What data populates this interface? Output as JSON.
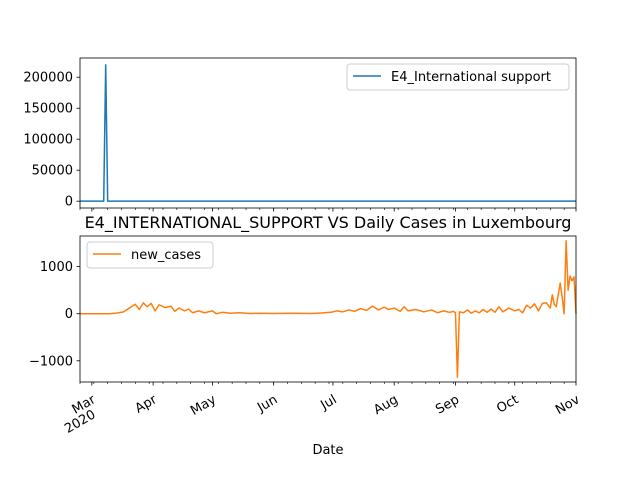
{
  "figure": {
    "title": "E4_INTERNATIONAL_SUPPORT VS Daily Cases in Luxembourg",
    "xlabel": "Date"
  },
  "colors": {
    "series_top": "#1f77b4",
    "series_bottom": "#ff7f0e"
  },
  "chart_data": [
    {
      "type": "line",
      "title": "",
      "x_range": [
        "2020-02-24",
        "2020-11-01"
      ],
      "ylim": [
        -11000,
        231000
      ],
      "y_ticks": [
        0,
        50000,
        100000,
        150000,
        200000
      ],
      "y_tick_labels": [
        "0",
        "50000",
        "100000",
        "150000",
        "200000"
      ],
      "legend_position": "top-right",
      "grid": false,
      "series": [
        {
          "name": "E4_International support",
          "points": [
            [
              "2020-02-24",
              0
            ],
            [
              "2020-03-07",
              0
            ],
            [
              "2020-03-08",
              220000
            ],
            [
              "2020-03-09",
              0
            ],
            [
              "2020-11-01",
              0
            ]
          ]
        }
      ]
    },
    {
      "type": "line",
      "x_range": [
        "2020-02-24",
        "2020-11-01"
      ],
      "ylim": [
        -1450,
        1650
      ],
      "y_ticks": [
        -1000,
        0,
        1000
      ],
      "y_tick_labels": [
        "−1000",
        "0",
        "1000"
      ],
      "x_ticks": [
        {
          "date": "2020-03-01",
          "label": "Mar",
          "sublabel": "2020"
        },
        {
          "date": "2020-04-01",
          "label": "Apr"
        },
        {
          "date": "2020-05-01",
          "label": "May"
        },
        {
          "date": "2020-06-01",
          "label": "Jun"
        },
        {
          "date": "2020-07-01",
          "label": "Jul"
        },
        {
          "date": "2020-08-01",
          "label": "Aug"
        },
        {
          "date": "2020-09-01",
          "label": "Sep"
        },
        {
          "date": "2020-10-01",
          "label": "Oct"
        },
        {
          "date": "2020-11-01",
          "label": "Nov"
        }
      ],
      "legend_position": "top-left",
      "grid": false,
      "series": [
        {
          "name": "new_cases",
          "points": [
            [
              "2020-02-24",
              0
            ],
            [
              "2020-03-10",
              0
            ],
            [
              "2020-03-14",
              15
            ],
            [
              "2020-03-17",
              40
            ],
            [
              "2020-03-20",
              120
            ],
            [
              "2020-03-23",
              200
            ],
            [
              "2020-03-25",
              90
            ],
            [
              "2020-03-27",
              230
            ],
            [
              "2020-03-29",
              150
            ],
            [
              "2020-03-31",
              220
            ],
            [
              "2020-04-02",
              60
            ],
            [
              "2020-04-04",
              190
            ],
            [
              "2020-04-07",
              130
            ],
            [
              "2020-04-10",
              160
            ],
            [
              "2020-04-12",
              50
            ],
            [
              "2020-04-14",
              120
            ],
            [
              "2020-04-17",
              60
            ],
            [
              "2020-04-19",
              100
            ],
            [
              "2020-04-21",
              20
            ],
            [
              "2020-04-24",
              60
            ],
            [
              "2020-04-27",
              20
            ],
            [
              "2020-05-01",
              60
            ],
            [
              "2020-05-03",
              0
            ],
            [
              "2020-05-06",
              30
            ],
            [
              "2020-05-10",
              10
            ],
            [
              "2020-05-15",
              20
            ],
            [
              "2020-05-20",
              5
            ],
            [
              "2020-05-25",
              10
            ],
            [
              "2020-06-01",
              5
            ],
            [
              "2020-06-10",
              10
            ],
            [
              "2020-06-20",
              5
            ],
            [
              "2020-06-25",
              15
            ],
            [
              "2020-06-30",
              30
            ],
            [
              "2020-07-03",
              60
            ],
            [
              "2020-07-06",
              40
            ],
            [
              "2020-07-09",
              80
            ],
            [
              "2020-07-12",
              50
            ],
            [
              "2020-07-15",
              110
            ],
            [
              "2020-07-18",
              70
            ],
            [
              "2020-07-21",
              160
            ],
            [
              "2020-07-24",
              80
            ],
            [
              "2020-07-27",
              140
            ],
            [
              "2020-07-29",
              90
            ],
            [
              "2020-08-01",
              120
            ],
            [
              "2020-08-04",
              50
            ],
            [
              "2020-08-06",
              150
            ],
            [
              "2020-08-08",
              60
            ],
            [
              "2020-08-12",
              90
            ],
            [
              "2020-08-16",
              40
            ],
            [
              "2020-08-20",
              80
            ],
            [
              "2020-08-23",
              20
            ],
            [
              "2020-08-26",
              60
            ],
            [
              "2020-08-29",
              30
            ],
            [
              "2020-08-31",
              50
            ],
            [
              "2020-09-01",
              20
            ],
            [
              "2020-09-02",
              -1350
            ],
            [
              "2020-09-03",
              40
            ],
            [
              "2020-09-05",
              20
            ],
            [
              "2020-09-07",
              80
            ],
            [
              "2020-09-09",
              10
            ],
            [
              "2020-09-11",
              60
            ],
            [
              "2020-09-13",
              20
            ],
            [
              "2020-09-15",
              90
            ],
            [
              "2020-09-17",
              30
            ],
            [
              "2020-09-19",
              100
            ],
            [
              "2020-09-21",
              30
            ],
            [
              "2020-09-23",
              150
            ],
            [
              "2020-09-25",
              40
            ],
            [
              "2020-09-28",
              120
            ],
            [
              "2020-10-01",
              60
            ],
            [
              "2020-10-03",
              90
            ],
            [
              "2020-10-05",
              20
            ],
            [
              "2020-10-07",
              180
            ],
            [
              "2020-10-09",
              120
            ],
            [
              "2020-10-11",
              210
            ],
            [
              "2020-10-13",
              60
            ],
            [
              "2020-10-15",
              220
            ],
            [
              "2020-10-17",
              230
            ],
            [
              "2020-10-19",
              120
            ],
            [
              "2020-10-20",
              400
            ],
            [
              "2020-10-21",
              200
            ],
            [
              "2020-10-22",
              150
            ],
            [
              "2020-10-24",
              650
            ],
            [
              "2020-10-25",
              350
            ],
            [
              "2020-10-26",
              0
            ],
            [
              "2020-10-27",
              1550
            ],
            [
              "2020-10-28",
              500
            ],
            [
              "2020-10-29",
              800
            ],
            [
              "2020-10-30",
              700
            ],
            [
              "2020-10-31",
              780
            ],
            [
              "2020-11-01",
              0
            ]
          ]
        }
      ]
    }
  ]
}
